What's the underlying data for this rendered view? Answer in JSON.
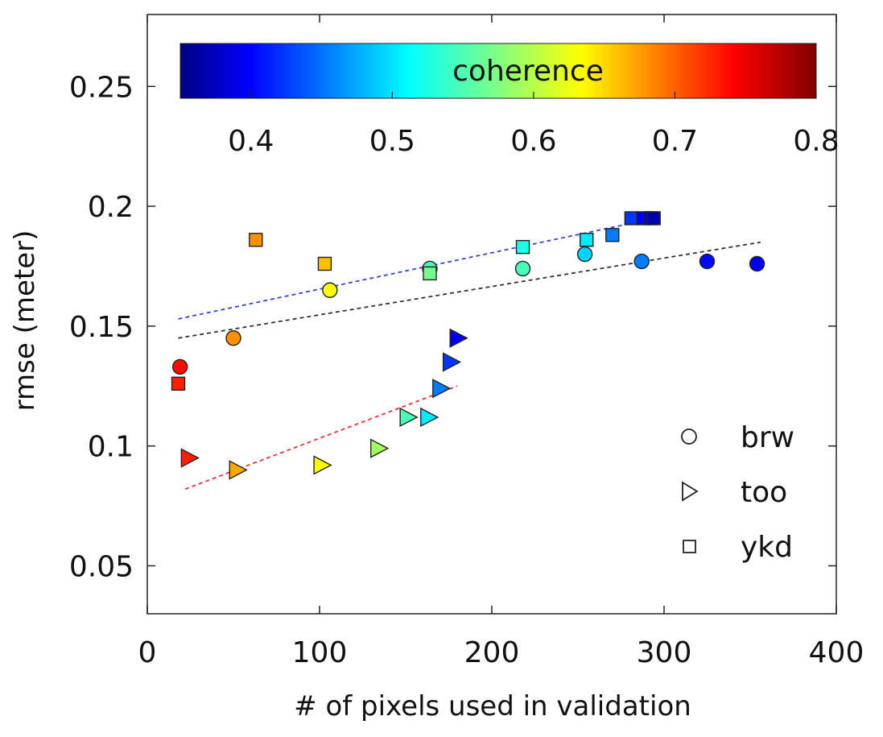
{
  "chart_data": {
    "type": "scatter",
    "xlabel": "# of pixels used in validation",
    "ylabel": "rmse (meter)",
    "xlim": [
      0,
      400
    ],
    "ylim": [
      0.03,
      0.28
    ],
    "x_ticks": [
      0,
      100,
      200,
      300,
      400
    ],
    "x_tick_labels": [
      "0",
      "100",
      "200",
      "300",
      "400"
    ],
    "y_ticks": [
      0.05,
      0.1,
      0.15,
      0.2,
      0.25
    ],
    "y_tick_labels": [
      "0.05",
      "0.1",
      "0.15",
      "0.2",
      "0.25"
    ],
    "grid": false,
    "colorbar": {
      "label": "coherence",
      "range": [
        0.35,
        0.8
      ],
      "ticks": [
        0.4,
        0.5,
        0.6,
        0.7,
        0.8
      ],
      "tick_labels": [
        "0.4",
        "0.5",
        "0.6",
        "0.7",
        "0.8"
      ],
      "colormap": "jet",
      "placement": "top-inside"
    },
    "legend": {
      "placement": "bottom-right",
      "entries": [
        {
          "label": "brw",
          "marker": "circle"
        },
        {
          "label": "too",
          "marker": "triangle-right"
        },
        {
          "label": "ykd",
          "marker": "square"
        }
      ]
    },
    "series": [
      {
        "name": "brw",
        "marker": "circle",
        "points": [
          {
            "x": 19,
            "y": 0.133,
            "coherence": 0.74
          },
          {
            "x": 50,
            "y": 0.145,
            "coherence": 0.68
          },
          {
            "x": 106,
            "y": 0.165,
            "coherence": 0.63
          },
          {
            "x": 164,
            "y": 0.174,
            "coherence": 0.55
          },
          {
            "x": 218,
            "y": 0.174,
            "coherence": 0.55
          },
          {
            "x": 254,
            "y": 0.18,
            "coherence": 0.5
          },
          {
            "x": 287,
            "y": 0.177,
            "coherence": 0.46
          },
          {
            "x": 325,
            "y": 0.177,
            "coherence": 0.41
          },
          {
            "x": 354,
            "y": 0.176,
            "coherence": 0.4
          }
        ]
      },
      {
        "name": "too",
        "marker": "triangle-right",
        "points": [
          {
            "x": 24,
            "y": 0.095,
            "coherence": 0.73
          },
          {
            "x": 52,
            "y": 0.09,
            "coherence": 0.67
          },
          {
            "x": 101,
            "y": 0.092,
            "coherence": 0.63
          },
          {
            "x": 134,
            "y": 0.099,
            "coherence": 0.59
          },
          {
            "x": 151,
            "y": 0.112,
            "coherence": 0.55
          },
          {
            "x": 163,
            "y": 0.112,
            "coherence": 0.51
          },
          {
            "x": 170,
            "y": 0.124,
            "coherence": 0.46
          },
          {
            "x": 176,
            "y": 0.135,
            "coherence": 0.43
          },
          {
            "x": 180,
            "y": 0.145,
            "coherence": 0.4
          }
        ]
      },
      {
        "name": "ykd",
        "marker": "square",
        "points": [
          {
            "x": 18,
            "y": 0.126,
            "coherence": 0.73
          },
          {
            "x": 63,
            "y": 0.186,
            "coherence": 0.68
          },
          {
            "x": 103,
            "y": 0.176,
            "coherence": 0.66
          },
          {
            "x": 164,
            "y": 0.172,
            "coherence": 0.57
          },
          {
            "x": 218,
            "y": 0.183,
            "coherence": 0.53
          },
          {
            "x": 255,
            "y": 0.186,
            "coherence": 0.51
          },
          {
            "x": 270,
            "y": 0.188,
            "coherence": 0.46
          },
          {
            "x": 281,
            "y": 0.195,
            "coherence": 0.43
          },
          {
            "x": 288,
            "y": 0.195,
            "coherence": 0.4
          },
          {
            "x": 292,
            "y": 0.195,
            "coherence": 0.38
          },
          {
            "x": 294,
            "y": 0.195,
            "coherence": 0.37
          }
        ]
      }
    ],
    "trend_lines": [
      {
        "name": "ykd-fit",
        "color": "#3344dd",
        "x": [
          18,
          295
        ],
        "y": [
          0.153,
          0.195
        ]
      },
      {
        "name": "brw-fit",
        "color": "#333333",
        "x": [
          18,
          356
        ],
        "y": [
          0.145,
          0.185
        ]
      },
      {
        "name": "too-fit",
        "color": "#ee3333",
        "x": [
          22,
          180
        ],
        "y": [
          0.082,
          0.125
        ]
      }
    ]
  }
}
